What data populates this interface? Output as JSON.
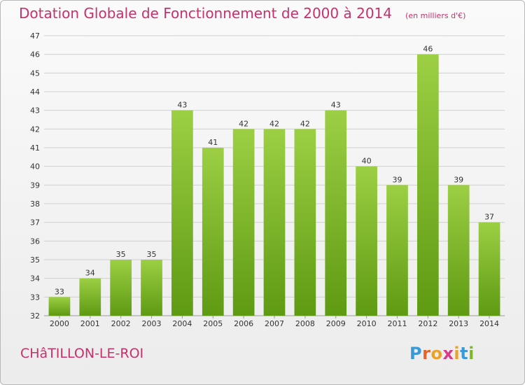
{
  "header": {
    "title": "Dotation Globale de Fonctionnement de 2000 à 2014",
    "unit": "(en milliers d'€)"
  },
  "footer": {
    "city": "CHâTILLON-LE-ROI",
    "logo": {
      "text": "Proxiti",
      "letter_colors": [
        "#3a9ad9",
        "#e8632c",
        "#e8a22c",
        "#d93a8c",
        "#e8a22c",
        "#3a9ad9",
        "#7fb62c"
      ]
    }
  },
  "colors": {
    "bar_top": "#9ccf44",
    "bar_bottom": "#5e9a12",
    "title": "#c8306c",
    "grid": "#d0d0d0"
  },
  "chart_data": {
    "type": "bar",
    "categories": [
      "2000",
      "2001",
      "2002",
      "2003",
      "2004",
      "2005",
      "2006",
      "2007",
      "2008",
      "2009",
      "2010",
      "2011",
      "2012",
      "2013",
      "2014"
    ],
    "values": [
      33,
      34,
      35,
      35,
      43,
      41,
      42,
      42,
      42,
      43,
      40,
      39,
      46,
      39,
      37
    ],
    "ylim": [
      32,
      47
    ],
    "yticks": [
      32,
      33,
      34,
      35,
      36,
      37,
      38,
      39,
      40,
      41,
      42,
      43,
      44,
      45,
      46,
      47
    ],
    "grid": true,
    "data_labels": true
  }
}
